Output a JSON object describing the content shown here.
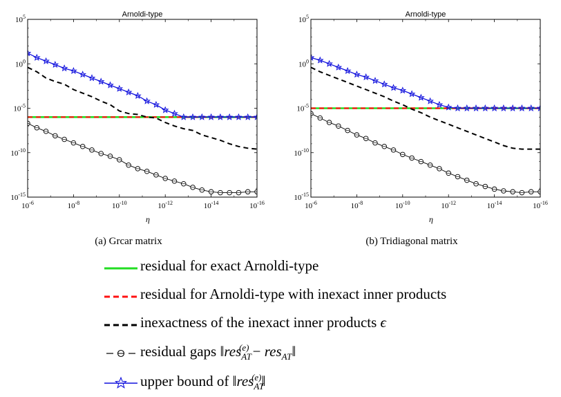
{
  "chart_data": [
    {
      "type": "line",
      "id": "a",
      "title": "Arnoldi-type",
      "caption": "(a)  Grcar matrix",
      "xlabel": "η",
      "ylabel": "",
      "x_scale": "log10-reversed",
      "y_scale": "log10",
      "x_range_exp": [
        -6,
        -16
      ],
      "y_range_exp": [
        -15,
        5
      ],
      "x_tick_exps": [
        -6,
        -8,
        -10,
        -12,
        -14,
        -16
      ],
      "y_tick_exps": [
        5,
        0,
        -5,
        -10,
        -15
      ],
      "x_exp": [
        -6,
        -6.4,
        -6.8,
        -7.2,
        -7.6,
        -8,
        -8.4,
        -8.8,
        -9.2,
        -9.6,
        -10,
        -10.4,
        -10.8,
        -11.2,
        -11.6,
        -12,
        -12.4,
        -12.8,
        -13.2,
        -13.6,
        -14,
        -14.4,
        -14.8,
        -15.2,
        -15.6,
        -16
      ],
      "series": [
        {
          "name": "residual for exact Arnoldi-type",
          "key": "exact",
          "y_exp": [
            -6,
            -6,
            -6,
            -6,
            -6,
            -6,
            -6,
            -6,
            -6,
            -6,
            -6,
            -6,
            -6,
            -6,
            -6,
            -6,
            -6,
            -6,
            -6,
            -6,
            -6,
            -6,
            -6,
            -6,
            -6,
            -6
          ]
        },
        {
          "name": "residual for Arnoldi-type with inexact inner products",
          "key": "inexact",
          "y_exp": [
            -6,
            -6,
            -6,
            -6,
            -6,
            -6,
            -6,
            -6,
            -6,
            -6,
            -6,
            -6,
            -6,
            -6,
            -6,
            -6,
            -6,
            -6,
            -6,
            -6,
            -6,
            -6,
            -6,
            -6,
            -6,
            -6
          ]
        },
        {
          "name": "inexactness of the inexact inner products ϵ",
          "key": "eps",
          "y_exp": [
            -0.4,
            -0.9,
            -1.6,
            -2.0,
            -2.3,
            -2.9,
            -3.3,
            -3.7,
            -4.2,
            -4.6,
            -5.3,
            -5.6,
            -5.7,
            -6.0,
            -6.1,
            -6.6,
            -7.0,
            -7.3,
            -7.5,
            -8.0,
            -8.3,
            -8.6,
            -9.0,
            -9.3,
            -9.5,
            -9.6
          ]
        },
        {
          "name": "residual gaps",
          "key": "gap",
          "y_exp": [
            -6.7,
            -7.2,
            -7.6,
            -8.1,
            -8.5,
            -8.9,
            -9.3,
            -9.7,
            -10.1,
            -10.4,
            -10.8,
            -11.4,
            -11.8,
            -12.1,
            -12.5,
            -12.9,
            -13.2,
            -13.5,
            -13.9,
            -14.2,
            -14.4,
            -14.5,
            -14.5,
            -14.5,
            -14.4,
            -14.4
          ]
        },
        {
          "name": "upper bound",
          "key": "ub",
          "y_exp": [
            1.2,
            0.7,
            0.3,
            -0.1,
            -0.5,
            -0.8,
            -1.2,
            -1.6,
            -2.0,
            -2.4,
            -2.8,
            -3.2,
            -3.6,
            -4.2,
            -4.6,
            -5.2,
            -5.6,
            -6.0,
            -6.0,
            -6.0,
            -6.0,
            -6.0,
            -6.0,
            -6.0,
            -6.0,
            -6.0
          ]
        }
      ]
    },
    {
      "type": "line",
      "id": "b",
      "title": "Arnoldi-type",
      "caption": "(b)  Tridiagonal matrix",
      "xlabel": "η",
      "ylabel": "",
      "x_scale": "log10-reversed",
      "y_scale": "log10",
      "x_range_exp": [
        -6,
        -16
      ],
      "y_range_exp": [
        -15,
        5
      ],
      "x_tick_exps": [
        -6,
        -8,
        -10,
        -12,
        -14,
        -16
      ],
      "y_tick_exps": [
        5,
        0,
        -5,
        -10,
        -15
      ],
      "x_exp": [
        -6,
        -6.4,
        -6.8,
        -7.2,
        -7.6,
        -8,
        -8.4,
        -8.8,
        -9.2,
        -9.6,
        -10,
        -10.4,
        -10.8,
        -11.2,
        -11.6,
        -12,
        -12.4,
        -12.8,
        -13.2,
        -13.6,
        -14,
        -14.4,
        -14.8,
        -15.2,
        -15.6,
        -16
      ],
      "series": [
        {
          "name": "residual for exact Arnoldi-type",
          "key": "exact",
          "y_exp": [
            -5,
            -5,
            -5,
            -5,
            -5,
            -5,
            -5,
            -5,
            -5,
            -5,
            -5,
            -5,
            -5,
            -5,
            -5,
            -5,
            -5,
            -5,
            -5,
            -5,
            -5,
            -5,
            -5,
            -5,
            -5,
            -5
          ]
        },
        {
          "name": "residual for Arnoldi-type with inexact inner products",
          "key": "inexact",
          "y_exp": [
            -5,
            -5,
            -5,
            -5,
            -5,
            -5,
            -5,
            -5,
            -5,
            -5,
            -5,
            -5,
            -5,
            -5,
            -5,
            -5,
            -5,
            -5,
            -5,
            -5,
            -5,
            -5,
            -5,
            -5,
            -5,
            -5
          ]
        },
        {
          "name": "inexactness of the inexact inner products ϵ",
          "key": "eps",
          "y_exp": [
            -0.4,
            -0.9,
            -1.3,
            -1.7,
            -2.1,
            -2.5,
            -2.9,
            -3.3,
            -3.7,
            -4.2,
            -4.6,
            -5.1,
            -5.5,
            -6.0,
            -6.4,
            -6.8,
            -7.2,
            -7.6,
            -8.0,
            -8.4,
            -8.8,
            -9.2,
            -9.5,
            -9.6,
            -9.6,
            -9.6
          ]
        },
        {
          "name": "residual gaps",
          "key": "gap",
          "y_exp": [
            -5.6,
            -6.1,
            -6.6,
            -7.0,
            -7.5,
            -8.0,
            -8.4,
            -8.9,
            -9.3,
            -9.7,
            -10.2,
            -10.6,
            -11.0,
            -11.4,
            -11.8,
            -12.3,
            -12.7,
            -13.1,
            -13.5,
            -13.8,
            -14.1,
            -14.3,
            -14.4,
            -14.5,
            -14.4,
            -14.4
          ]
        },
        {
          "name": "upper bound",
          "key": "ub",
          "y_exp": [
            0.7,
            0.4,
            0.0,
            -0.4,
            -0.8,
            -1.2,
            -1.5,
            -1.9,
            -2.3,
            -2.7,
            -3.0,
            -3.4,
            -3.8,
            -4.2,
            -4.6,
            -4.9,
            -5.0,
            -5.0,
            -5.0,
            -5.0,
            -5.0,
            -5.0,
            -5.0,
            -5.0,
            -5.0,
            -5.0
          ]
        }
      ]
    }
  ],
  "legend": {
    "exact": "residual for exact Arnoldi-type",
    "inexact": "residual for Arnoldi-type with inexact inner products",
    "eps_text": "inexactness of the inexact inner products",
    "eps_symbol": "ϵ",
    "gap_text": "residual gaps",
    "ub_text": "upper bound of",
    "math": {
      "res": "res",
      "sub_at": "AT",
      "sup_e": "(e)",
      "minus": "−",
      "norm_open": "‖",
      "norm_close": "‖"
    }
  },
  "colors": {
    "exact": "#22dd22",
    "inexact": "#ff1111",
    "eps": "#000000",
    "gap": "#000000",
    "ub": "#1111dd"
  }
}
